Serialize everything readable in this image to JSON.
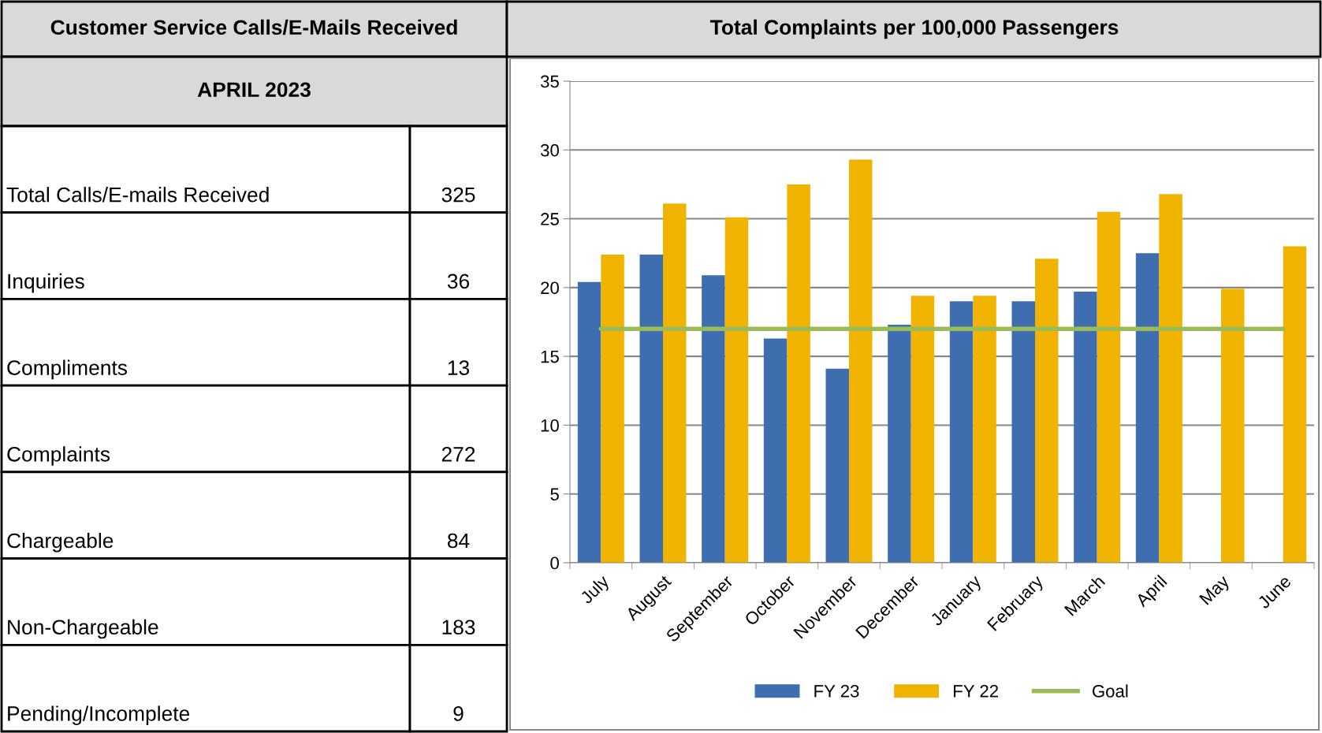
{
  "chart_data": [
    {
      "type": "other",
      "title": "Customer Service Calls/E-Mails Received",
      "subtitle": "APRIL 2023",
      "categories": [
        "Total Calls/E-mails Received",
        "Inquiries",
        "Compliments",
        "Complaints",
        "Chargeable",
        "Non-Chargeable",
        "Pending/Incomplete"
      ],
      "values": [
        325,
        36,
        13,
        272,
        84,
        183,
        9
      ],
      "data_labels": true
    },
    {
      "type": "bar",
      "title": "Total Complaints per 100,000 Passengers",
      "categories": [
        "July",
        "August",
        "September",
        "October",
        "November",
        "December",
        "January",
        "February",
        "March",
        "April",
        "May",
        "June"
      ],
      "series": [
        {
          "name": "FY 23",
          "color": "#3e6db0",
          "values": [
            20.4,
            22.4,
            20.9,
            16.3,
            14.1,
            17.3,
            19.0,
            19.0,
            19.7,
            22.5,
            null,
            null
          ]
        },
        {
          "name": "FY 22",
          "color": "#f0b400",
          "values": [
            22.4,
            26.1,
            25.1,
            27.5,
            29.3,
            19.4,
            19.4,
            22.1,
            25.5,
            26.8,
            19.9,
            23.0
          ]
        },
        {
          "name": "Goal",
          "type": "line",
          "color": "#9bbb59",
          "values": [
            17,
            17,
            17,
            17,
            17,
            17,
            17,
            17,
            17,
            17,
            17,
            17
          ]
        }
      ],
      "ylim": [
        0,
        35
      ],
      "yticks": [
        0,
        5,
        10,
        15,
        20,
        25,
        30,
        35
      ],
      "grid": "y",
      "legend": "bottom",
      "marker": "none",
      "line_style": "solid"
    }
  ]
}
